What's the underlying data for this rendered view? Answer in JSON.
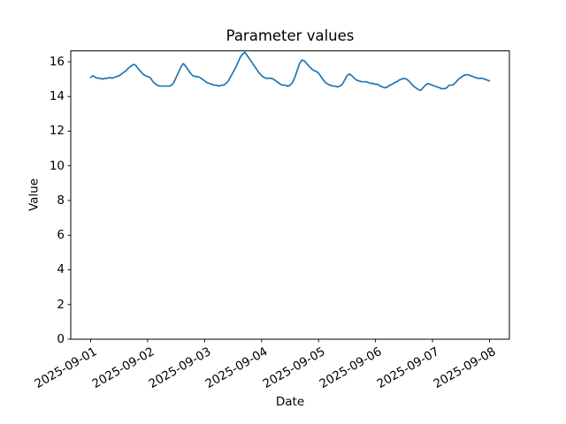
{
  "figure": {
    "background": "#ffffff",
    "text_color": "#000000",
    "spine_color": "#000000"
  },
  "chart_data": {
    "type": "line",
    "title": "Parameter values",
    "xlabel": "Date",
    "ylabel": "Value",
    "grid": false,
    "legend_position": "none",
    "x_tick_labels": [
      "2025-09-01",
      "2025-09-02",
      "2025-09-03",
      "2025-09-04",
      "2025-09-05",
      "2025-09-06",
      "2025-09-07",
      "2025-09-08"
    ],
    "x_tick_rotation_deg": 30,
    "y_ticks": [
      0,
      2,
      4,
      6,
      8,
      10,
      12,
      14,
      16
    ],
    "ylim": [
      0,
      16.63
    ],
    "xlim_days": [
      -0.35,
      7.35
    ],
    "series": [
      {
        "name": "Parameter values",
        "color": "#1f77b4",
        "start_date": "2025-09-01",
        "interval_hours": 1,
        "values": [
          15.1,
          15.2,
          15.1,
          15.05,
          15.05,
          15.0,
          15.05,
          15.05,
          15.1,
          15.05,
          15.1,
          15.15,
          15.2,
          15.3,
          15.4,
          15.5,
          15.65,
          15.75,
          15.85,
          15.8,
          15.6,
          15.45,
          15.3,
          15.2,
          15.15,
          15.1,
          14.9,
          14.75,
          14.65,
          14.6,
          14.6,
          14.6,
          14.6,
          14.6,
          14.65,
          14.8,
          15.1,
          15.4,
          15.7,
          15.9,
          15.75,
          15.55,
          15.35,
          15.2,
          15.15,
          15.15,
          15.1,
          15.0,
          14.9,
          14.8,
          14.75,
          14.7,
          14.65,
          14.65,
          14.6,
          14.65,
          14.65,
          14.75,
          14.9,
          15.15,
          15.4,
          15.65,
          15.95,
          16.25,
          16.45,
          16.55,
          16.35,
          16.15,
          15.95,
          15.75,
          15.55,
          15.35,
          15.2,
          15.1,
          15.05,
          15.05,
          15.05,
          15.0,
          14.9,
          14.8,
          14.7,
          14.65,
          14.65,
          14.6,
          14.65,
          14.8,
          15.1,
          15.5,
          15.9,
          16.1,
          16.05,
          15.9,
          15.75,
          15.6,
          15.5,
          15.45,
          15.35,
          15.15,
          14.95,
          14.8,
          14.7,
          14.65,
          14.6,
          14.6,
          14.55,
          14.6,
          14.7,
          14.95,
          15.2,
          15.3,
          15.2,
          15.05,
          14.95,
          14.9,
          14.85,
          14.85,
          14.85,
          14.8,
          14.75,
          14.75,
          14.7,
          14.7,
          14.6,
          14.55,
          14.5,
          14.55,
          14.65,
          14.7,
          14.8,
          14.85,
          14.95,
          15.0,
          15.05,
          15.0,
          14.9,
          14.75,
          14.6,
          14.5,
          14.4,
          14.35,
          14.5,
          14.65,
          14.75,
          14.7,
          14.65,
          14.6,
          14.55,
          14.5,
          14.45,
          14.45,
          14.5,
          14.65,
          14.65,
          14.7,
          14.85,
          15.0,
          15.1,
          15.2,
          15.25,
          15.25,
          15.2,
          15.15,
          15.1,
          15.05,
          15.05,
          15.05,
          15.0,
          14.95,
          14.9
        ]
      }
    ]
  }
}
